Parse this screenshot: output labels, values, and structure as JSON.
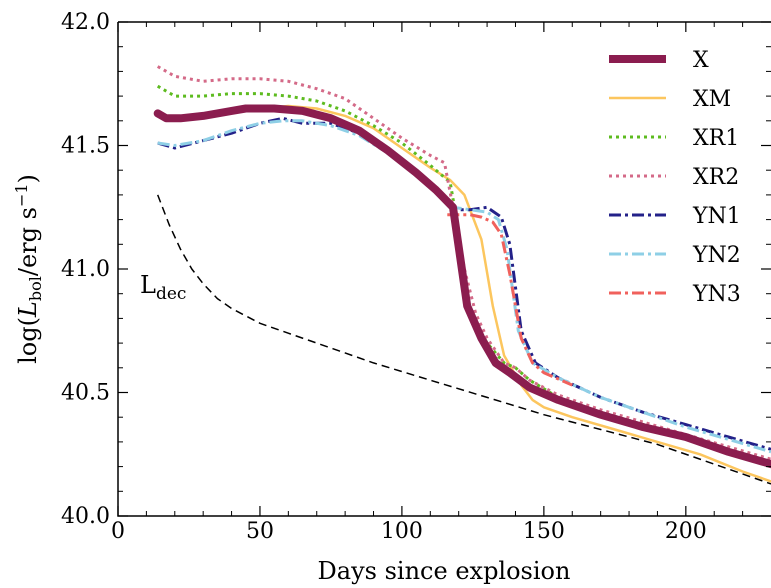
{
  "chart_data": {
    "type": "line",
    "xlabel": "Days since explosion",
    "ylabel": {
      "prefix": "log(",
      "italic": "L",
      "sub": "bol",
      "suffix": "/erg s",
      "sup": "−1",
      "end": ")"
    },
    "xlim": [
      0,
      230
    ],
    "ylim": [
      40.0,
      42.0
    ],
    "xticks": [
      0,
      50,
      100,
      150,
      200
    ],
    "xtick_labels": [
      "0",
      "50",
      "100",
      "150",
      "200"
    ],
    "yticks": [
      40.0,
      40.5,
      41.0,
      41.5,
      42.0
    ],
    "ytick_labels": [
      "40.0",
      "40.5",
      "41.0",
      "41.5",
      "42.0"
    ],
    "grid": false,
    "legend_position": "top-right",
    "annotation": {
      "text": "L",
      "sub": "dec"
    },
    "series": [
      {
        "name": "X",
        "color": "#8b1d4f",
        "width": 8,
        "dash": "",
        "x": [
          14,
          17,
          22,
          30,
          40,
          45,
          55,
          65,
          75,
          85,
          95,
          105,
          112,
          118,
          123,
          128,
          133,
          138,
          145,
          155,
          170,
          185,
          200,
          215,
          230
        ],
        "y": [
          41.63,
          41.61,
          41.61,
          41.62,
          41.64,
          41.65,
          41.65,
          41.64,
          41.61,
          41.56,
          41.48,
          41.39,
          41.32,
          41.25,
          40.85,
          40.72,
          40.62,
          40.58,
          40.52,
          40.47,
          40.41,
          40.36,
          40.32,
          40.26,
          40.21
        ]
      },
      {
        "name": "XM",
        "color": "#fcc65e",
        "width": 2.5,
        "dash": "",
        "x": [
          14,
          20,
          30,
          40,
          50,
          60,
          70,
          80,
          90,
          100,
          110,
          117,
          122,
          128,
          132,
          136,
          142,
          146,
          150,
          160,
          175,
          190,
          205,
          220,
          230
        ],
        "y": [
          41.62,
          41.6,
          41.61,
          41.63,
          41.65,
          41.66,
          41.65,
          41.62,
          41.57,
          41.49,
          41.41,
          41.36,
          41.3,
          41.12,
          40.85,
          40.65,
          40.53,
          40.47,
          40.44,
          40.4,
          40.35,
          40.3,
          40.25,
          40.18,
          40.14
        ]
      },
      {
        "name": "XR1",
        "color": "#5dbb1f",
        "width": 3,
        "dash": "3 4",
        "x": [
          14,
          20,
          30,
          40,
          50,
          60,
          70,
          80,
          90,
          100,
          110,
          114,
          117,
          120,
          124,
          130,
          136,
          140,
          145,
          155,
          170,
          185,
          200,
          215,
          230
        ],
        "y": [
          41.74,
          41.7,
          41.7,
          41.71,
          41.71,
          41.7,
          41.68,
          41.64,
          41.58,
          41.51,
          41.42,
          41.38,
          41.35,
          41.15,
          40.82,
          40.7,
          40.62,
          40.6,
          40.55,
          40.48,
          40.42,
          40.37,
          40.32,
          40.26,
          40.21
        ]
      },
      {
        "name": "XR2",
        "color": "#d46a88",
        "width": 3,
        "dash": "3 4",
        "x": [
          14,
          20,
          30,
          40,
          50,
          60,
          70,
          80,
          90,
          100,
          110,
          115,
          118,
          122,
          126,
          130,
          136,
          140,
          145,
          155,
          170,
          185,
          200,
          215,
          230
        ],
        "y": [
          41.82,
          41.78,
          41.76,
          41.77,
          41.77,
          41.76,
          41.73,
          41.69,
          41.61,
          41.53,
          41.46,
          41.43,
          41.25,
          41.0,
          40.82,
          40.72,
          40.62,
          40.6,
          40.55,
          40.49,
          40.43,
          40.38,
          40.33,
          40.28,
          40.23
        ]
      },
      {
        "name": "YN1",
        "color": "#232189",
        "width": 3,
        "dash": "12 4 3 4",
        "x": [
          14,
          20,
          30,
          40,
          50,
          58,
          65,
          75,
          85,
          95,
          105,
          113,
          118,
          124,
          130,
          135,
          138,
          142,
          147,
          155,
          170,
          185,
          200,
          215,
          230
        ],
        "y": [
          41.51,
          41.49,
          41.52,
          41.55,
          41.59,
          41.61,
          41.59,
          41.59,
          41.55,
          41.48,
          41.39,
          41.3,
          41.24,
          41.24,
          41.25,
          41.21,
          41.1,
          40.75,
          40.62,
          40.56,
          40.48,
          40.42,
          40.37,
          40.32,
          40.27
        ]
      },
      {
        "name": "YN2",
        "color": "#8ecfe6",
        "width": 3,
        "dash": "12 4 3 4",
        "x": [
          14,
          20,
          30,
          40,
          50,
          58,
          65,
          75,
          85,
          95,
          105,
          113,
          118,
          124,
          130,
          134,
          137,
          141,
          146,
          155,
          170,
          185,
          200,
          215,
          230
        ],
        "y": [
          41.51,
          41.5,
          41.52,
          41.56,
          41.59,
          41.6,
          41.6,
          41.58,
          41.54,
          41.47,
          41.38,
          41.3,
          41.25,
          41.24,
          41.23,
          41.2,
          41.08,
          40.75,
          40.62,
          40.56,
          40.48,
          40.42,
          40.36,
          40.31,
          40.26
        ]
      },
      {
        "name": "YN3",
        "color": "#f0615c",
        "width": 3,
        "dash": "12 4 3 4",
        "x": [
          116,
          120,
          124,
          128,
          132,
          135,
          138,
          142,
          146,
          150,
          160
        ],
        "y": [
          41.22,
          41.22,
          41.22,
          41.21,
          41.19,
          41.14,
          40.98,
          40.72,
          40.62,
          40.58,
          40.53
        ]
      },
      {
        "name": "",
        "color": "#000000",
        "width": 1.5,
        "dash": "8 5",
        "x": [
          14,
          18,
          22,
          26,
          30,
          35,
          40,
          50,
          60,
          75,
          90,
          110,
          130,
          150,
          170,
          190,
          210,
          230
        ],
        "y": [
          41.3,
          41.18,
          41.08,
          41.0,
          40.94,
          40.88,
          40.84,
          40.78,
          40.74,
          40.68,
          40.62,
          40.55,
          40.48,
          40.41,
          40.35,
          40.29,
          40.21,
          40.13
        ]
      }
    ]
  }
}
